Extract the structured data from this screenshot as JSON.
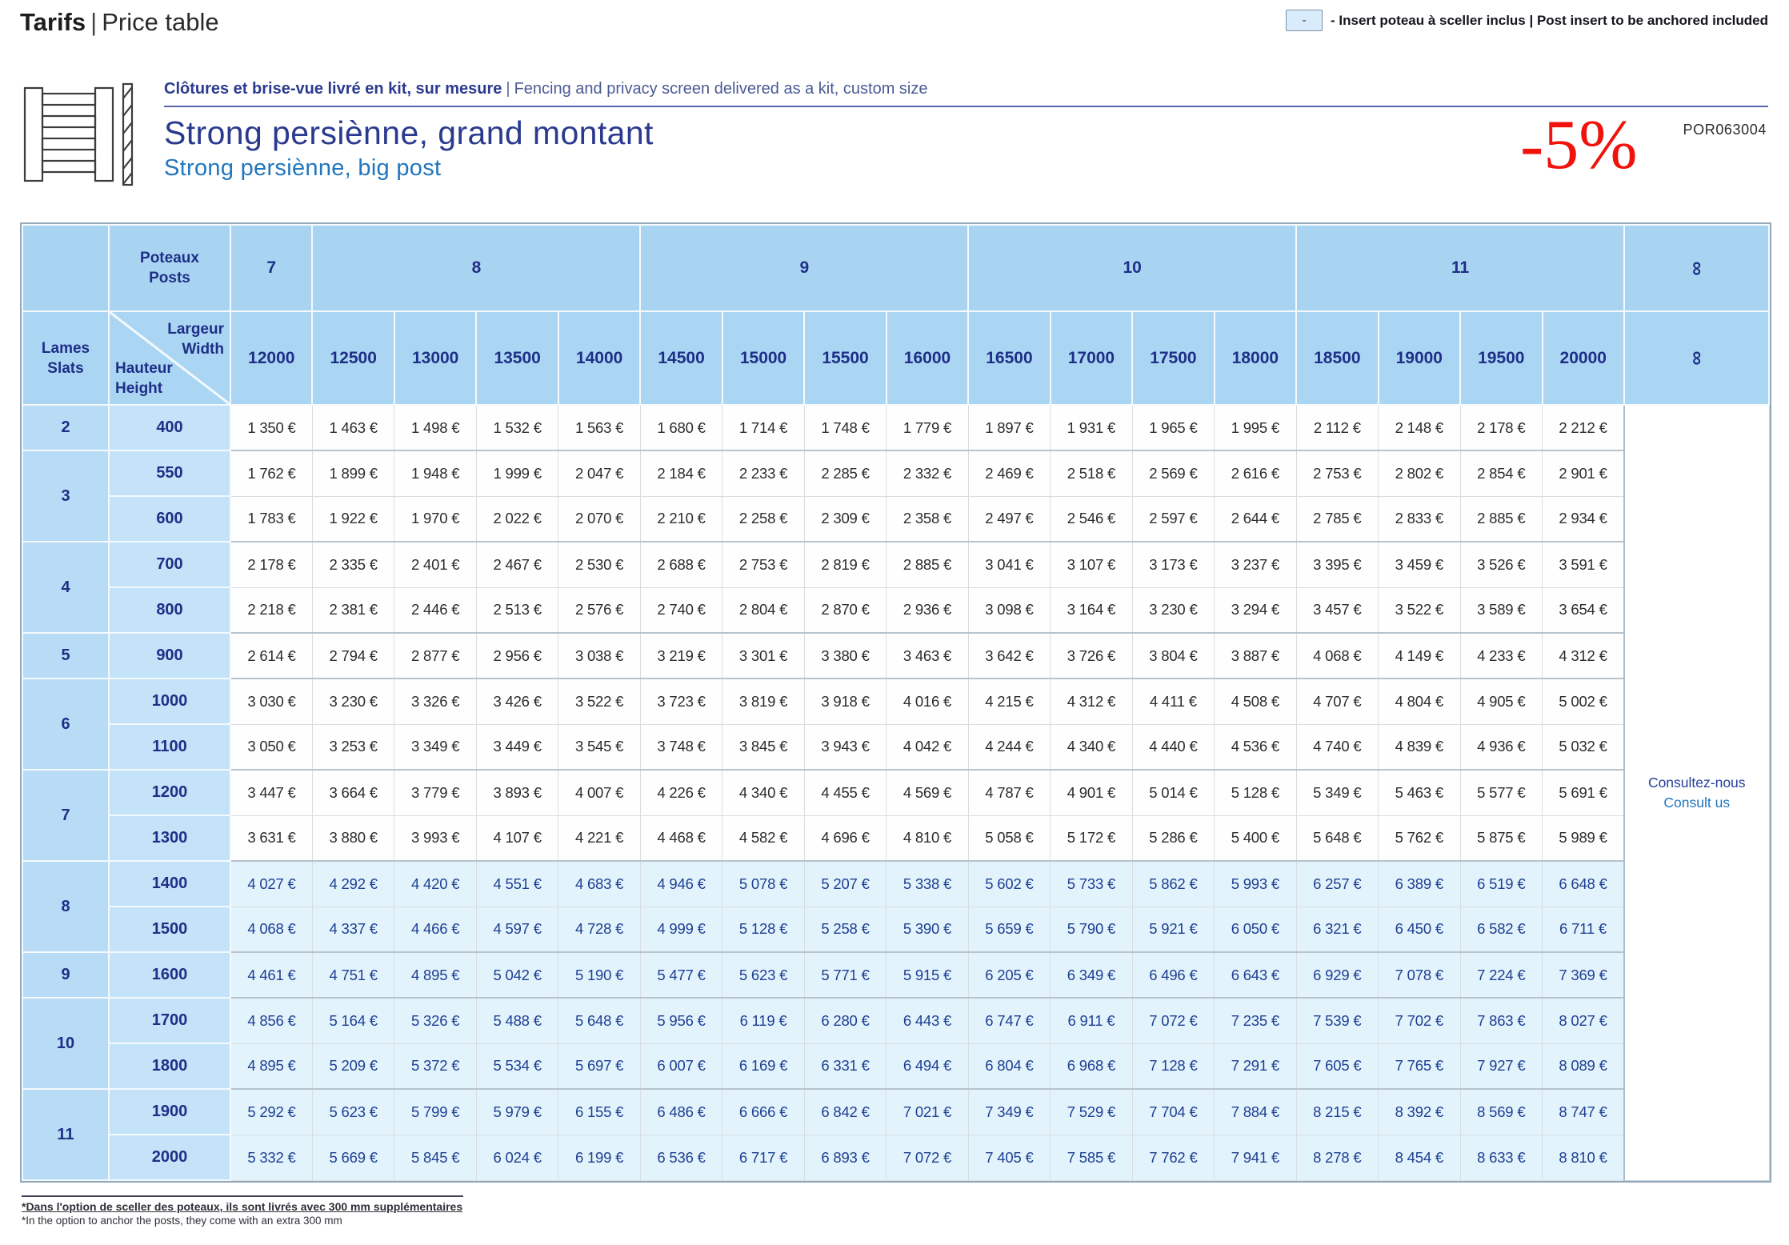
{
  "header": {
    "title_fr": "Tarifs",
    "title_sep": "|",
    "title_en": "Price table"
  },
  "legend": {
    "symbol": "-",
    "text": "- Insert poteau à sceller inclus | Post insert to be anchored included"
  },
  "product": {
    "kit_fr": "Clôtures et brise-vue livré en kit, sur mesure",
    "kit_sep": "|",
    "kit_en": "Fencing and privacy screen delivered as a kit, custom size",
    "name_fr": "Strong persiènne, grand montant",
    "name_en": "Strong persiènne, big post",
    "discount": "-5%",
    "code": "POR063004"
  },
  "colors": {
    "accent_red": "#ef130b",
    "navy": "#2b3a8f",
    "medium_blue": "#2176bd",
    "header_blue": "#a9d4f1",
    "slats_blue": "#b8dcf5",
    "height_blue": "#c4e3f8",
    "highlight_row_blue": "#e3f3fc"
  },
  "table": {
    "posts_fr": "Poteaux",
    "posts_en": "Posts",
    "slats_fr": "Lames",
    "slats_en": "Slats",
    "width_fr": "Largeur",
    "width_en": "Width",
    "height_fr": "Hauteur",
    "height_en": "Height",
    "infinity": "∞",
    "consult_fr": "Consultez-nous",
    "consult_en": "Consult us",
    "currency": "€",
    "post_groups": [
      {
        "label": "7",
        "span": 1
      },
      {
        "label": "8",
        "span": 4
      },
      {
        "label": "9",
        "span": 4
      },
      {
        "label": "10",
        "span": 4
      },
      {
        "label": "11",
        "span": 4
      },
      {
        "label": "∞",
        "span": 1,
        "rotated": true
      }
    ],
    "widths": [
      "12000",
      "12500",
      "13000",
      "13500",
      "14000",
      "14500",
      "15000",
      "15500",
      "16000",
      "16500",
      "17000",
      "17500",
      "18000",
      "18500",
      "19000",
      "19500",
      "20000"
    ],
    "row_groups": [
      {
        "slats": "2",
        "rows": [
          {
            "height": "400",
            "highlight": false,
            "prices": [
              1350,
              1463,
              1498,
              1532,
              1563,
              1680,
              1714,
              1748,
              1779,
              1897,
              1931,
              1965,
              1995,
              2112,
              2148,
              2178,
              2212
            ]
          }
        ]
      },
      {
        "slats": "3",
        "rows": [
          {
            "height": "550",
            "highlight": false,
            "prices": [
              1762,
              1899,
              1948,
              1999,
              2047,
              2184,
              2233,
              2285,
              2332,
              2469,
              2518,
              2569,
              2616,
              2753,
              2802,
              2854,
              2901
            ]
          },
          {
            "height": "600",
            "highlight": false,
            "prices": [
              1783,
              1922,
              1970,
              2022,
              2070,
              2210,
              2258,
              2309,
              2358,
              2497,
              2546,
              2597,
              2644,
              2785,
              2833,
              2885,
              2934
            ]
          }
        ]
      },
      {
        "slats": "4",
        "rows": [
          {
            "height": "700",
            "highlight": false,
            "prices": [
              2178,
              2335,
              2401,
              2467,
              2530,
              2688,
              2753,
              2819,
              2885,
              3041,
              3107,
              3173,
              3237,
              3395,
              3459,
              3526,
              3591
            ]
          },
          {
            "height": "800",
            "highlight": false,
            "prices": [
              2218,
              2381,
              2446,
              2513,
              2576,
              2740,
              2804,
              2870,
              2936,
              3098,
              3164,
              3230,
              3294,
              3457,
              3522,
              3589,
              3654
            ]
          }
        ]
      },
      {
        "slats": "5",
        "rows": [
          {
            "height": "900",
            "highlight": false,
            "prices": [
              2614,
              2794,
              2877,
              2956,
              3038,
              3219,
              3301,
              3380,
              3463,
              3642,
              3726,
              3804,
              3887,
              4068,
              4149,
              4233,
              4312
            ]
          }
        ]
      },
      {
        "slats": "6",
        "rows": [
          {
            "height": "1000",
            "highlight": false,
            "prices": [
              3030,
              3230,
              3326,
              3426,
              3522,
              3723,
              3819,
              3918,
              4016,
              4215,
              4312,
              4411,
              4508,
              4707,
              4804,
              4905,
              5002
            ]
          },
          {
            "height": "1100",
            "highlight": false,
            "prices": [
              3050,
              3253,
              3349,
              3449,
              3545,
              3748,
              3845,
              3943,
              4042,
              4244,
              4340,
              4440,
              4536,
              4740,
              4839,
              4936,
              5032
            ]
          }
        ]
      },
      {
        "slats": "7",
        "rows": [
          {
            "height": "1200",
            "highlight": false,
            "prices": [
              3447,
              3664,
              3779,
              3893,
              4007,
              4226,
              4340,
              4455,
              4569,
              4787,
              4901,
              5014,
              5128,
              5349,
              5463,
              5577,
              5691
            ]
          },
          {
            "height": "1300",
            "highlight": false,
            "prices": [
              3631,
              3880,
              3993,
              4107,
              4221,
              4468,
              4582,
              4696,
              4810,
              5058,
              5172,
              5286,
              5400,
              5648,
              5762,
              5875,
              5989
            ]
          }
        ]
      },
      {
        "slats": "8",
        "rows": [
          {
            "height": "1400",
            "highlight": true,
            "prices": [
              4027,
              4292,
              4420,
              4551,
              4683,
              4946,
              5078,
              5207,
              5338,
              5602,
              5733,
              5862,
              5993,
              6257,
              6389,
              6519,
              6648
            ]
          },
          {
            "height": "1500",
            "highlight": true,
            "prices": [
              4068,
              4337,
              4466,
              4597,
              4728,
              4999,
              5128,
              5258,
              5390,
              5659,
              5790,
              5921,
              6050,
              6321,
              6450,
              6582,
              6711
            ]
          }
        ]
      },
      {
        "slats": "9",
        "rows": [
          {
            "height": "1600",
            "highlight": true,
            "prices": [
              4461,
              4751,
              4895,
              5042,
              5190,
              5477,
              5623,
              5771,
              5915,
              6205,
              6349,
              6496,
              6643,
              6929,
              7078,
              7224,
              7369
            ]
          }
        ]
      },
      {
        "slats": "10",
        "rows": [
          {
            "height": "1700",
            "highlight": true,
            "prices": [
              4856,
              5164,
              5326,
              5488,
              5648,
              5956,
              6119,
              6280,
              6443,
              6747,
              6911,
              7072,
              7235,
              7539,
              7702,
              7863,
              8027
            ]
          },
          {
            "height": "1800",
            "highlight": true,
            "prices": [
              4895,
              5209,
              5372,
              5534,
              5697,
              6007,
              6169,
              6331,
              6494,
              6804,
              6968,
              7128,
              7291,
              7605,
              7765,
              7927,
              8089
            ]
          }
        ]
      },
      {
        "slats": "11",
        "rows": [
          {
            "height": "1900",
            "highlight": true,
            "prices": [
              5292,
              5623,
              5799,
              5979,
              6155,
              6486,
              6666,
              6842,
              7021,
              7349,
              7529,
              7704,
              7884,
              8215,
              8392,
              8569,
              8747
            ]
          },
          {
            "height": "2000",
            "highlight": true,
            "prices": [
              5332,
              5669,
              5845,
              6024,
              6199,
              6536,
              6717,
              6893,
              7072,
              7405,
              7585,
              7762,
              7941,
              8278,
              8454,
              8633,
              8810
            ]
          }
        ]
      }
    ]
  },
  "footnote": {
    "fr": "*Dans l'option de sceller des poteaux, ils sont livrés avec 300 mm supplémentaires",
    "en": "*In the option to anchor the posts, they come with an extra 300 mm"
  }
}
